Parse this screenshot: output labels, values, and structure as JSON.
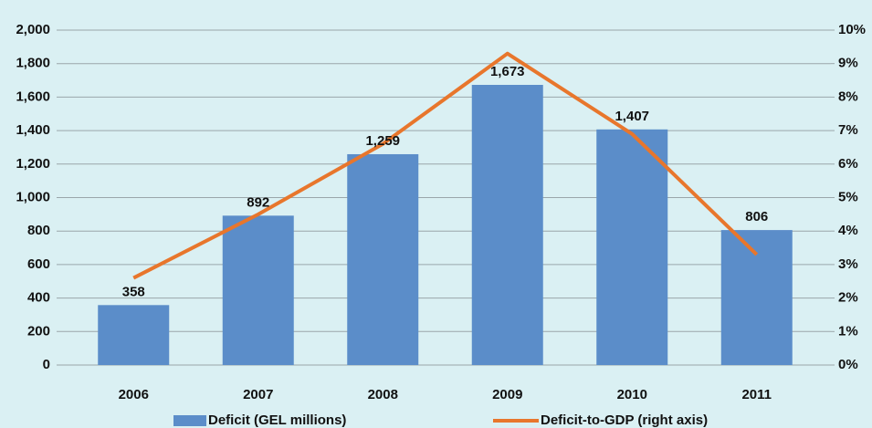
{
  "chart_data": {
    "type": "bar_line",
    "categories": [
      "2006",
      "2007",
      "2008",
      "2009",
      "2010",
      "2011"
    ],
    "series": [
      {
        "name": "Deficit (GEL millions)",
        "color": "#5b8dc9",
        "type": "bar",
        "values": [
          358,
          892,
          1259,
          1673,
          1407,
          806
        ],
        "value_labels": [
          "358",
          "892",
          "1,259",
          "1,673",
          "1,407",
          "806"
        ]
      },
      {
        "name": "Deficit-to-GDP (right axis)",
        "color": "#e8762c",
        "type": "line",
        "axis": "y2",
        "values": [
          2.6,
          4.5,
          6.6,
          9.3,
          6.9,
          3.3
        ]
      }
    ],
    "ylim": [
      0,
      2000
    ],
    "yticks": [
      0,
      200,
      400,
      600,
      800,
      {
        "value": 1000,
        "label": "1,000"
      },
      {
        "value": 1200,
        "label": "1,200"
      },
      {
        "value": 1400,
        "label": "1,400"
      },
      {
        "value": 1600,
        "label": "1,600"
      },
      {
        "value": 1800,
        "label": "1,800"
      },
      {
        "value": 2000,
        "label": "2,000"
      }
    ],
    "y2lim": [
      0,
      10
    ],
    "y2ticks": [
      {
        "value": 0,
        "label": "0%"
      },
      {
        "value": 1,
        "label": "1%"
      },
      {
        "value": 2,
        "label": "2%"
      },
      {
        "value": 3,
        "label": "3%"
      },
      {
        "value": 4,
        "label": "4%"
      },
      {
        "value": 5,
        "label": "5%"
      },
      {
        "value": 6,
        "label": "6%"
      },
      {
        "value": 7,
        "label": "7%"
      },
      {
        "value": 8,
        "label": "8%"
      },
      {
        "value": 9,
        "label": "9%"
      },
      {
        "value": 10,
        "label": "10%"
      }
    ],
    "grid": true,
    "legend": "bottom"
  }
}
